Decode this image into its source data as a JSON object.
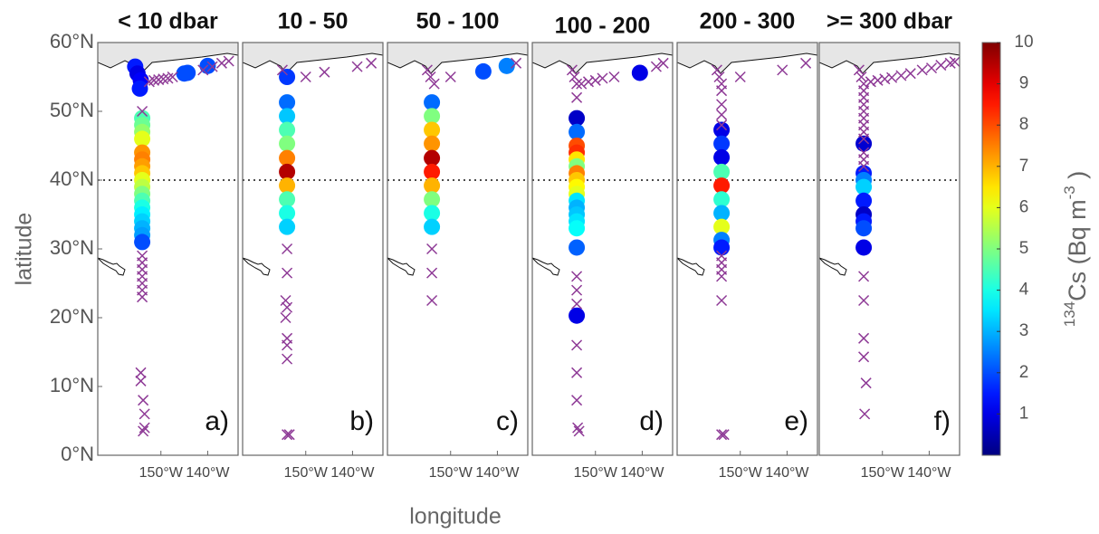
{
  "chart_data": [
    {
      "type": "scatter",
      "title": "< 10 dbar",
      "label": "a)",
      "ylabel": "latitude",
      "xlim": [
        -163.5,
        -133.5
      ],
      "ylim": [
        0,
        60
      ],
      "xticks": [
        {
          "value": -150,
          "label": "150°W"
        },
        {
          "value": -140,
          "label": "140°W"
        }
      ],
      "yticks": [
        {
          "value": 0,
          "label": "0°N"
        },
        {
          "value": 10,
          "label": "10°N"
        },
        {
          "value": 20,
          "label": "20°N"
        },
        {
          "value": 30,
          "label": "30°N"
        },
        {
          "value": 40,
          "label": "40°N"
        },
        {
          "value": 50,
          "label": "50°N"
        },
        {
          "value": 60,
          "label": "60°N"
        }
      ],
      "reference_line": 40,
      "series": [
        {
          "x": [
            -155.5,
            -155,
            -154.3,
            -154.5,
            -154,
            -154,
            -154,
            -154,
            -154,
            -154,
            -154,
            -154,
            -154,
            -154,
            -154,
            -154,
            -154,
            -154,
            -154,
            -154,
            -154,
            -154,
            -145,
            -144.3,
            -140
          ],
          "values": [
            56.5,
            55.5,
            54.5,
            53.3,
            49,
            48,
            47,
            46,
            44,
            43,
            42,
            41,
            40,
            39,
            38,
            37,
            36,
            35,
            34,
            33,
            32,
            31,
            55.5,
            55.6,
            56.6
          ],
          "color_values": [
            1.5,
            1,
            1.2,
            1.5,
            4.5,
            4.8,
            5.2,
            6,
            7.3,
            7.5,
            7.2,
            6.8,
            6,
            5.6,
            5,
            4.5,
            4,
            3.6,
            3.3,
            3,
            2.8,
            2,
            2,
            2,
            2
          ],
          "colormap": "jet"
        },
        {
          "x": [
            -154,
            -154,
            -154,
            -154,
            -154,
            -154,
            -154,
            -154,
            -154.3,
            -154.3,
            -153.8,
            -153.5,
            -153.5,
            -153.8,
            -152.5,
            -151.5,
            -150.5,
            -149.5,
            -148.5,
            -147.5,
            -141,
            -139,
            -137,
            -135.5
          ],
          "values": [
            50,
            29,
            28,
            27,
            26,
            25,
            24,
            23,
            12,
            10.8,
            8,
            6,
            4,
            3.5,
            54.3,
            54.5,
            54.6,
            54.7,
            54.8,
            55,
            56,
            56.5,
            57,
            57.3
          ],
          "marker": "x",
          "color": "#8e3a96"
        }
      ]
    },
    {
      "type": "scatter",
      "title": "10 - 50",
      "label": "b)",
      "xlim": [
        -163.5,
        -133.5
      ],
      "ylim": [
        0,
        60
      ],
      "xticks": [
        {
          "value": -150,
          "label": "150°W"
        },
        {
          "value": -140,
          "label": "140°W"
        }
      ],
      "reference_line": 40,
      "series": [
        {
          "x": [
            -154,
            -154,
            -154,
            -154,
            -154,
            -154,
            -154,
            -154,
            -154,
            -154,
            -154
          ],
          "values": [
            55,
            51.3,
            49.3,
            47.3,
            45.3,
            43.2,
            41.2,
            39.2,
            37.2,
            35.2,
            33.2
          ],
          "color_values": [
            1.8,
            2.3,
            3.2,
            4.5,
            5,
            7.5,
            9.5,
            7,
            4.5,
            4,
            3.3
          ],
          "colormap": "jet"
        },
        {
          "x": [
            -155,
            -154,
            -154,
            -154.3,
            -154,
            -154.3,
            -154,
            -154,
            -154,
            -154,
            -153.5,
            -150,
            -146,
            -139,
            -136
          ],
          "values": [
            56,
            30,
            26.5,
            22.5,
            21.5,
            20,
            17,
            16,
            14,
            3,
            3,
            55,
            55.7,
            56.5,
            57
          ],
          "marker": "x",
          "color": "#8e3a96"
        }
      ]
    },
    {
      "type": "scatter",
      "title": "50 - 100",
      "label": "c)",
      "xlim": [
        -163.5,
        -133.5
      ],
      "ylim": [
        0,
        60
      ],
      "xticks": [
        {
          "value": -150,
          "label": "150°W"
        },
        {
          "value": -140,
          "label": "140°W"
        }
      ],
      "reference_line": 40,
      "series": [
        {
          "x": [
            -154,
            -154,
            -154,
            -154,
            -154,
            -154,
            -154,
            -154,
            -154,
            -154,
            -143,
            -138
          ],
          "values": [
            51.3,
            49.3,
            47.3,
            45.3,
            43.2,
            41.2,
            39.2,
            37.2,
            35.2,
            33.2,
            55.8,
            56.6
          ],
          "color_values": [
            2.3,
            5,
            6.8,
            7.3,
            9.5,
            8.5,
            7,
            5,
            4,
            3.3,
            2,
            2.5
          ],
          "colormap": "jet"
        },
        {
          "x": [
            -155,
            -154.3,
            -153.5,
            -154,
            -154,
            -154,
            -150,
            -136
          ],
          "values": [
            56,
            55,
            54,
            30,
            26.5,
            22.5,
            55,
            57
          ],
          "marker": "x",
          "color": "#8e3a96"
        }
      ]
    },
    {
      "type": "scatter",
      "title": "100 - 200",
      "label": "d)",
      "xlim": [
        -163.5,
        -133.5
      ],
      "ylim": [
        0,
        60
      ],
      "xticks": [
        {
          "value": -150,
          "label": "150°W"
        },
        {
          "value": -140,
          "label": "140°W"
        }
      ],
      "reference_line": 40,
      "series": [
        {
          "x": [
            -154,
            -154,
            -154,
            -154,
            -154,
            -154,
            -154,
            -154,
            -154,
            -154,
            -154,
            -154,
            -154,
            -154,
            -154,
            -154,
            -154,
            -140.5
          ],
          "values": [
            49,
            47,
            45,
            44,
            43,
            42,
            41,
            40,
            39,
            38,
            37,
            36,
            35,
            34,
            33,
            30.2,
            20.3,
            55.6
          ],
          "color_values": [
            0.7,
            2.3,
            8,
            8.3,
            6.5,
            5,
            7.5,
            6.8,
            6.3,
            6,
            3.5,
            3,
            3.2,
            3.5,
            3.8,
            2.2,
            1,
            1
          ],
          "colormap": "jet"
        },
        {
          "x": [
            -155,
            -154.5,
            -154,
            -154,
            -154,
            -154,
            -154,
            -154,
            -154,
            -154,
            -153.8,
            -153.5,
            -153,
            -151.5,
            -150,
            -148.5,
            -146,
            -137,
            -135.5
          ],
          "values": [
            56,
            55,
            54,
            52,
            26,
            24,
            22,
            16,
            12,
            8,
            4,
            3.5,
            54,
            54.3,
            54.5,
            54.8,
            55,
            56.5,
            57
          ],
          "marker": "x",
          "color": "#8e3a96"
        }
      ]
    },
    {
      "type": "scatter",
      "title": "200 - 300",
      "label": "e)",
      "xlim": [
        -163.5,
        -133.5
      ],
      "ylim": [
        0,
        60
      ],
      "xticks": [
        {
          "value": -150,
          "label": "150°W"
        },
        {
          "value": -140,
          "label": "140°W"
        }
      ],
      "reference_line": 40,
      "series": [
        {
          "x": [
            -154,
            -154,
            -154,
            -154,
            -154,
            -154,
            -154,
            -154,
            -154,
            -154
          ],
          "values": [
            47.3,
            45.3,
            43.3,
            41.2,
            39.2,
            37.2,
            35.2,
            33.2,
            31.3,
            30.2
          ],
          "color_values": [
            1,
            1.8,
            1,
            4.5,
            8.5,
            4.2,
            3,
            6,
            2.5,
            1.5
          ],
          "colormap": "jet"
        },
        {
          "x": [
            -155,
            -154.5,
            -154,
            -154,
            -154,
            -154,
            -154,
            -154,
            -154,
            -154,
            -154,
            -154,
            -154,
            -153.5,
            -150,
            -141,
            -136
          ],
          "values": [
            56,
            55,
            54,
            53,
            51,
            49.5,
            48,
            29,
            28,
            27,
            26,
            22.5,
            3,
            3,
            55,
            56,
            57
          ],
          "marker": "x",
          "color": "#8e3a96"
        }
      ]
    },
    {
      "type": "scatter",
      "title": ">= 300 dbar",
      "label": "f)",
      "xlim": [
        -163.5,
        -133.5
      ],
      "ylim": [
        0,
        60
      ],
      "xticks": [
        {
          "value": -150,
          "label": "150°W"
        },
        {
          "value": -140,
          "label": "140°W"
        }
      ],
      "reference_line": 40,
      "series": [
        {
          "x": [
            -154,
            -154,
            -154,
            -154,
            -154,
            -154,
            -154,
            -154,
            -154
          ],
          "values": [
            45.3,
            41,
            40,
            39,
            37,
            35,
            34,
            33,
            30.2
          ],
          "color_values": [
            0.8,
            1.5,
            2.5,
            3.3,
            1.5,
            0.7,
            1.5,
            2,
            1
          ],
          "colormap": "jet"
        },
        {
          "x": [
            -155,
            -154.5,
            -154,
            -154,
            -154,
            -154,
            -154,
            -154,
            -154,
            -154,
            -154,
            -154,
            -154,
            -154,
            -154,
            -154,
            -154,
            -154,
            -153.5,
            -153.8,
            -152.5,
            -151,
            -149.5,
            -148,
            -146,
            -144,
            -141.5,
            -139.5,
            -137.5,
            -135.5,
            -134.5
          ],
          "values": [
            56,
            55,
            54,
            53,
            52,
            51,
            50,
            49,
            48,
            47,
            46,
            44,
            43,
            42,
            26,
            22.5,
            17,
            14.3,
            10.5,
            6,
            54.3,
            54.5,
            54.7,
            54.9,
            55.2,
            55.5,
            56,
            56.3,
            56.7,
            57,
            57.2
          ],
          "marker": "x",
          "color": "#8e3a96"
        }
      ]
    }
  ],
  "figure": {
    "xlabel": "longitude",
    "colorbar": {
      "clim": [
        0,
        10
      ],
      "ticks": [
        1,
        2,
        3,
        4,
        5,
        6,
        7,
        8,
        9,
        10
      ],
      "colormap": "jet",
      "label": [
        "134",
        "Cs (Bq m",
        "-3",
        " )"
      ]
    }
  }
}
